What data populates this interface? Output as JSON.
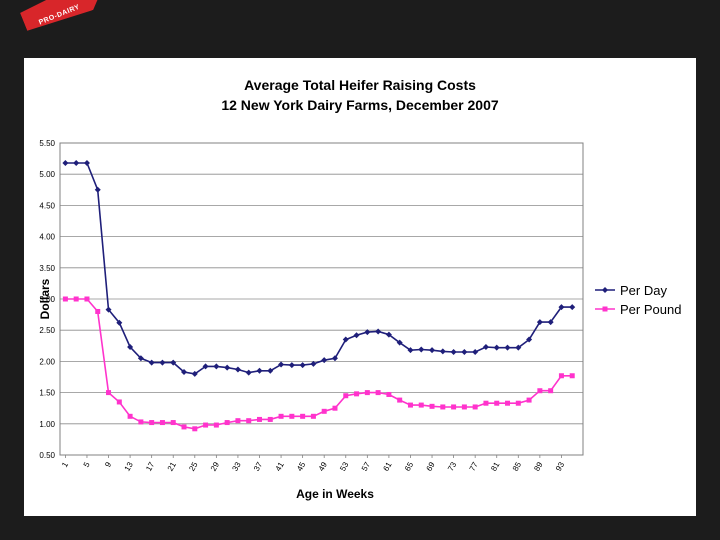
{
  "banner": {
    "text": "PRO-DAIRY"
  },
  "chart_data": {
    "type": "line",
    "title": "Average Total Heifer Raising Costs",
    "subtitle": "12 New York Dairy Farms, December 2007",
    "xlabel": "Age in Weeks",
    "ylabel": "Dollars",
    "ylim": [
      0.5,
      5.5
    ],
    "yticks": [
      "0.50",
      "1.00",
      "1.50",
      "2.00",
      "2.50",
      "3.00",
      "3.50",
      "4.00",
      "4.50",
      "5.00",
      "5.50"
    ],
    "xticks": [
      "1",
      "5",
      "9",
      "13",
      "17",
      "21",
      "25",
      "29",
      "33",
      "37",
      "41",
      "45",
      "49",
      "53",
      "57",
      "61",
      "65",
      "69",
      "73",
      "77",
      "81",
      "85",
      "89",
      "93"
    ],
    "grid": "horizontal",
    "legend_position": "right",
    "x": [
      1,
      3,
      5,
      7,
      9,
      11,
      13,
      15,
      17,
      19,
      21,
      23,
      25,
      27,
      29,
      31,
      33,
      35,
      37,
      39,
      41,
      43,
      45,
      47,
      49,
      51,
      53,
      55,
      57,
      59,
      61,
      63,
      65,
      67,
      69,
      71,
      73,
      75,
      77,
      79,
      81,
      83,
      85,
      87,
      89,
      91,
      93,
      95
    ],
    "series": [
      {
        "name": "Per Day",
        "color": "#1f1f7a",
        "marker": "diamond",
        "values": [
          5.18,
          5.18,
          5.18,
          4.75,
          2.83,
          2.62,
          2.23,
          2.05,
          1.98,
          1.98,
          1.98,
          1.83,
          1.8,
          1.92,
          1.92,
          1.9,
          1.87,
          1.82,
          1.85,
          1.85,
          1.95,
          1.94,
          1.94,
          1.96,
          2.02,
          2.05,
          2.35,
          2.42,
          2.47,
          2.48,
          2.43,
          2.3,
          2.18,
          2.19,
          2.18,
          2.16,
          2.15,
          2.15,
          2.15,
          2.23,
          2.22,
          2.22,
          2.22,
          2.35,
          2.63,
          2.63,
          2.87,
          2.87
        ]
      },
      {
        "name": "Per Pound",
        "color": "#ff33cc",
        "marker": "square",
        "values": [
          3.0,
          3.0,
          3.0,
          2.8,
          1.5,
          1.35,
          1.12,
          1.03,
          1.02,
          1.02,
          1.02,
          0.95,
          0.92,
          0.98,
          0.98,
          1.02,
          1.05,
          1.05,
          1.07,
          1.07,
          1.12,
          1.12,
          1.12,
          1.12,
          1.2,
          1.25,
          1.45,
          1.48,
          1.5,
          1.5,
          1.47,
          1.38,
          1.3,
          1.3,
          1.28,
          1.27,
          1.27,
          1.27,
          1.27,
          1.33,
          1.33,
          1.33,
          1.33,
          1.38,
          1.53,
          1.53,
          1.77,
          1.77
        ]
      }
    ]
  }
}
